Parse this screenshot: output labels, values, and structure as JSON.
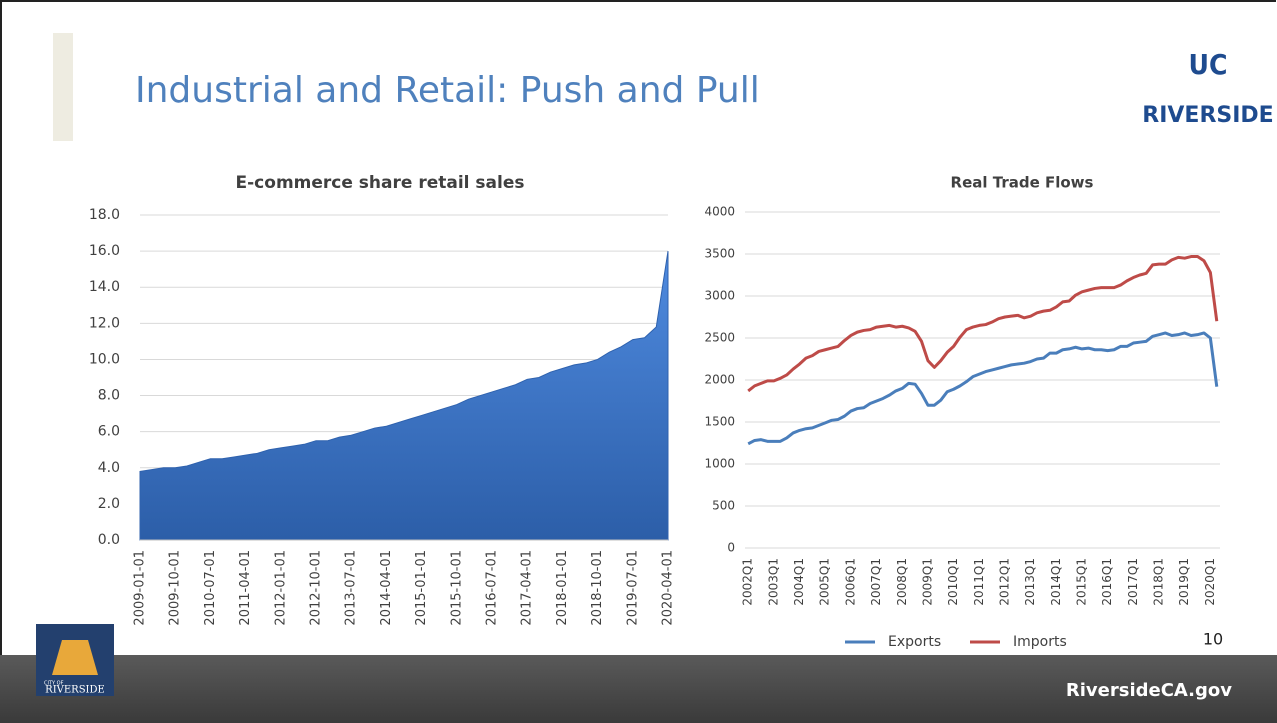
{
  "slide": {
    "title": "Industrial and Retail: Push and Pull",
    "page_number": "10",
    "footer": "RiversideCA.gov",
    "logo_top": "UC",
    "logo_bottom": "RIVERSIDE",
    "city_logo_small": "CITY OF",
    "city_logo": "RIVERSIDE"
  },
  "chart_data": [
    {
      "type": "area",
      "title": "E-commerce share retail sales",
      "color": "#3f78c9",
      "grid": true,
      "categories": [
        "2009-01-01",
        null,
        null,
        "2009-10-01",
        null,
        null,
        "2010-07-01",
        null,
        null,
        "2011-04-01",
        null,
        null,
        "2012-01-01",
        null,
        null,
        "2012-10-01",
        null,
        null,
        "2013-07-01",
        null,
        null,
        "2014-04-01",
        null,
        null,
        "2015-01-01",
        null,
        null,
        "2015-10-01",
        null,
        null,
        "2016-07-01",
        null,
        null,
        "2017-04-01",
        null,
        null,
        "2018-01-01",
        null,
        null,
        "2018-10-01",
        null,
        null,
        "2019-07-01",
        null,
        null,
        "2020-04-01"
      ],
      "values": [
        3.8,
        3.9,
        4.0,
        4.0,
        4.1,
        4.3,
        4.5,
        4.5,
        4.6,
        4.7,
        4.8,
        5.0,
        5.1,
        5.2,
        5.3,
        5.5,
        5.5,
        5.7,
        5.8,
        6.0,
        6.2,
        6.3,
        6.5,
        6.7,
        6.9,
        7.1,
        7.3,
        7.5,
        7.8,
        8.0,
        8.2,
        8.4,
        8.6,
        8.9,
        9.0,
        9.3,
        9.5,
        9.7,
        9.8,
        10.0,
        10.4,
        10.7,
        11.1,
        11.2,
        11.8,
        16.0
      ],
      "ylim": [
        0,
        18
      ],
      "yticks": [
        {
          "value": 0,
          "label": "0.0"
        },
        {
          "value": 2,
          "label": "2.0"
        },
        {
          "value": 4,
          "label": "4.0"
        },
        {
          "value": 6,
          "label": "6.0"
        },
        {
          "value": 8,
          "label": "8.0"
        },
        {
          "value": 10,
          "label": "10.0"
        },
        {
          "value": 12,
          "label": "12.0"
        },
        {
          "value": 14,
          "label": "14.0"
        },
        {
          "value": 16,
          "label": "16.0"
        },
        {
          "value": 18,
          "label": "18.0"
        }
      ]
    },
    {
      "type": "line",
      "title": "Real Trade Flows",
      "grid": true,
      "legend": "bottom",
      "categories": [
        "2002Q1",
        null,
        null,
        null,
        "2003Q1",
        null,
        null,
        null,
        "2004Q1",
        null,
        null,
        null,
        "2005Q1",
        null,
        null,
        null,
        "2006Q1",
        null,
        null,
        null,
        "2007Q1",
        null,
        null,
        null,
        "2008Q1",
        null,
        null,
        null,
        "2009Q1",
        null,
        null,
        null,
        "2010Q1",
        null,
        null,
        null,
        "2011Q1",
        null,
        null,
        null,
        "2012Q1",
        null,
        null,
        null,
        "2013Q1",
        null,
        null,
        null,
        "2014Q1",
        null,
        null,
        null,
        "2015Q1",
        null,
        null,
        null,
        "2016Q1",
        null,
        null,
        null,
        "2017Q1",
        null,
        null,
        null,
        "2018Q1",
        null,
        null,
        null,
        "2019Q1",
        null,
        null,
        null,
        "2020Q1",
        null
      ],
      "series": [
        {
          "name": "Exports",
          "color": "#4a7ebb",
          "values": [
            1240,
            1280,
            1290,
            1270,
            1270,
            1270,
            1310,
            1370,
            1400,
            1420,
            1430,
            1460,
            1490,
            1520,
            1530,
            1570,
            1630,
            1660,
            1670,
            1720,
            1750,
            1780,
            1820,
            1870,
            1900,
            1960,
            1950,
            1840,
            1700,
            1700,
            1760,
            1860,
            1890,
            1930,
            1980,
            2040,
            2070,
            2100,
            2120,
            2140,
            2160,
            2180,
            2190,
            2200,
            2220,
            2250,
            2260,
            2320,
            2320,
            2360,
            2370,
            2390,
            2370,
            2380,
            2360,
            2360,
            2350,
            2360,
            2400,
            2400,
            2440,
            2450,
            2460,
            2520,
            2540,
            2560,
            2530,
            2540,
            2560,
            2530,
            2540,
            2560,
            2500,
            1920
          ]
        },
        {
          "name": "Imports",
          "color": "#be4b48",
          "values": [
            1870,
            1930,
            1960,
            1990,
            1990,
            2020,
            2060,
            2130,
            2190,
            2260,
            2290,
            2340,
            2360,
            2380,
            2400,
            2470,
            2530,
            2570,
            2590,
            2600,
            2630,
            2640,
            2650,
            2630,
            2640,
            2620,
            2580,
            2460,
            2230,
            2150,
            2230,
            2330,
            2400,
            2510,
            2600,
            2630,
            2650,
            2660,
            2690,
            2730,
            2750,
            2760,
            2770,
            2740,
            2760,
            2800,
            2820,
            2830,
            2870,
            2930,
            2940,
            3010,
            3050,
            3070,
            3090,
            3100,
            3100,
            3100,
            3130,
            3180,
            3220,
            3250,
            3270,
            3370,
            3380,
            3380,
            3430,
            3460,
            3450,
            3470,
            3470,
            3420,
            3280,
            2700
          ]
        }
      ],
      "ylim": [
        0,
        4000
      ],
      "yticks": [
        0,
        500,
        1000,
        1500,
        2000,
        2500,
        3000,
        3500,
        4000
      ]
    }
  ]
}
